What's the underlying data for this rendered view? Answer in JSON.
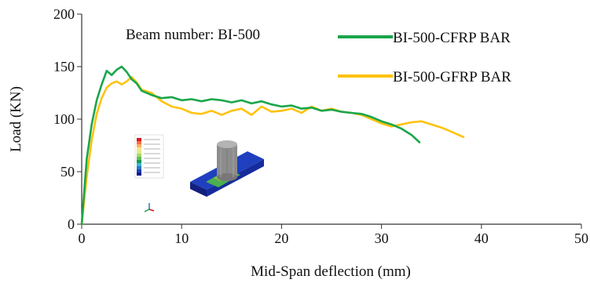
{
  "chart_data": {
    "type": "line",
    "title": "",
    "xlabel": "Mid-Span deflection (mm)",
    "ylabel": "Load (KN)",
    "xlim": [
      0,
      50
    ],
    "ylim": [
      0,
      200
    ],
    "xticks": [
      0,
      10,
      20,
      30,
      40,
      50
    ],
    "yticks": [
      0,
      50,
      100,
      150,
      200
    ],
    "grid": false,
    "legend_position": "top-right",
    "annotation": "Beam number: BI-500",
    "series": [
      {
        "name": "BI-500-CFRP BAR",
        "color": "#1aa64a",
        "x": [
          0,
          0.5,
          1.0,
          1.5,
          2.0,
          2.5,
          3.0,
          3.5,
          4.0,
          4.5,
          5.0,
          5.5,
          6.0,
          7.0,
          8.0,
          9.0,
          10.0,
          11.0,
          12.0,
          13.0,
          14.0,
          15.0,
          16.0,
          17.0,
          18.0,
          19.0,
          20.0,
          21.0,
          22.0,
          23.0,
          24.0,
          25.0,
          26.0,
          27.0,
          28.0,
          29.0,
          30.0,
          31.0,
          32.0,
          33.0,
          33.8
        ],
        "y": [
          0,
          62,
          95,
          118,
          133,
          146,
          142,
          147,
          150,
          145,
          138,
          134,
          127,
          123,
          120,
          121,
          118,
          119,
          117,
          119,
          118,
          116,
          118,
          115,
          117,
          114,
          112,
          113,
          110,
          111,
          108,
          109,
          107,
          106,
          105,
          102,
          98,
          95,
          91,
          85,
          78
        ]
      },
      {
        "name": "BI-500-GFRP BAR",
        "color": "#ffc20e",
        "x": [
          0,
          0.5,
          1.0,
          1.5,
          2.0,
          2.5,
          3.0,
          3.5,
          4.0,
          4.5,
          5.0,
          5.5,
          6.0,
          7.0,
          8.0,
          9.0,
          10.0,
          11.0,
          12.0,
          13.0,
          14.0,
          15.0,
          16.0,
          17.0,
          18.0,
          19.0,
          20.0,
          21.0,
          22.0,
          23.0,
          24.0,
          25.0,
          26.0,
          27.0,
          28.0,
          29.0,
          30.0,
          31.0,
          32.0,
          33.0,
          34.0,
          35.0,
          36.0,
          37.0,
          38.2
        ],
        "y": [
          0,
          45,
          80,
          105,
          120,
          130,
          134,
          136,
          133,
          136,
          140,
          135,
          128,
          125,
          117,
          112,
          110,
          106,
          105,
          108,
          104,
          108,
          110,
          104,
          112,
          107,
          108,
          110,
          106,
          112,
          108,
          110,
          107,
          106,
          104,
          100,
          96,
          93,
          95,
          97,
          98,
          95,
          92,
          88,
          83
        ]
      }
    ]
  }
}
